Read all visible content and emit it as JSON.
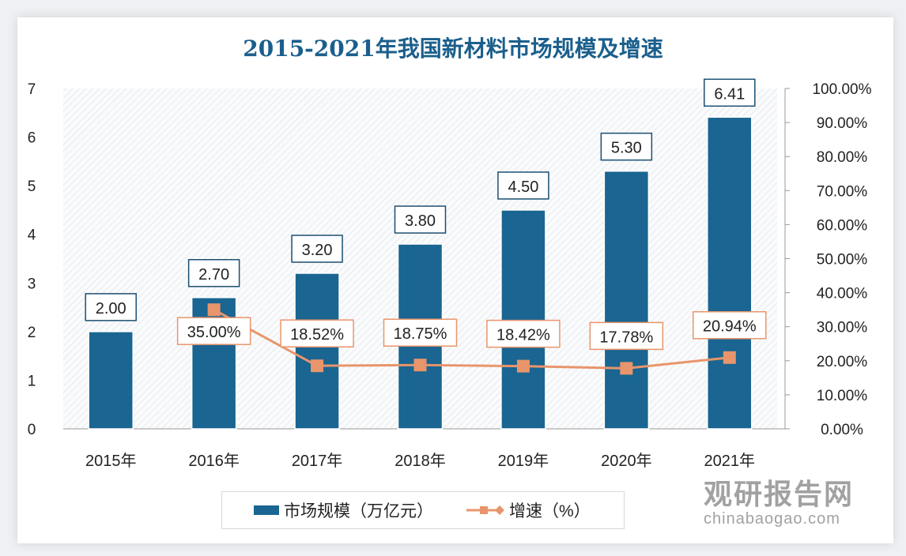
{
  "chart_data": {
    "type": "bar+line",
    "title": "2015-2021年我国新材料市场规模及增速",
    "categories": [
      "2015年",
      "2016年",
      "2017年",
      "2018年",
      "2019年",
      "2020年",
      "2021年"
    ],
    "series": [
      {
        "name": "市场规模（万亿元）",
        "type": "bar",
        "axis": "left",
        "values": [
          2.0,
          2.7,
          3.2,
          3.8,
          4.5,
          5.3,
          6.41
        ],
        "labels": [
          "2.00",
          "2.70",
          "3.20",
          "3.80",
          "4.50",
          "5.30",
          "6.41"
        ],
        "color": "#1a6591"
      },
      {
        "name": "增速（%）",
        "type": "line",
        "axis": "right",
        "values": [
          null,
          35.0,
          18.52,
          18.75,
          18.42,
          17.78,
          20.94
        ],
        "labels": [
          "",
          "35.00%",
          "18.52%",
          "18.75%",
          "18.42%",
          "17.78%",
          "20.94%"
        ],
        "color": "#e8956b"
      }
    ],
    "left_axis": {
      "ylim": [
        0,
        7
      ],
      "ticks": [
        "0",
        "1",
        "2",
        "3",
        "4",
        "5",
        "6",
        "7"
      ]
    },
    "right_axis": {
      "ylim": [
        0,
        100
      ],
      "ticks": [
        "0.00%",
        "10.00%",
        "20.00%",
        "30.00%",
        "40.00%",
        "50.00%",
        "60.00%",
        "70.00%",
        "80.00%",
        "90.00%",
        "100.00%"
      ]
    },
    "legend": {
      "placement": "bottom",
      "items": [
        "市场规模（万亿元）",
        "增速（%）"
      ]
    },
    "grid": false
  },
  "watermark": {
    "cn": "观研报告网",
    "en": "chinabaogao.com"
  }
}
